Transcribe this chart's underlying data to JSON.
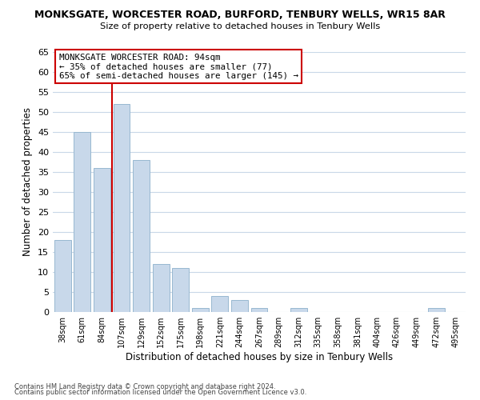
{
  "title": "MONKSGATE, WORCESTER ROAD, BURFORD, TENBURY WELLS, WR15 8AR",
  "subtitle": "Size of property relative to detached houses in Tenbury Wells",
  "xlabel": "Distribution of detached houses by size in Tenbury Wells",
  "ylabel": "Number of detached properties",
  "footnote1": "Contains HM Land Registry data © Crown copyright and database right 2024.",
  "footnote2": "Contains public sector information licensed under the Open Government Licence v3.0.",
  "bar_labels": [
    "38sqm",
    "61sqm",
    "84sqm",
    "107sqm",
    "129sqm",
    "152sqm",
    "175sqm",
    "198sqm",
    "221sqm",
    "244sqm",
    "267sqm",
    "289sqm",
    "312sqm",
    "335sqm",
    "358sqm",
    "381sqm",
    "404sqm",
    "426sqm",
    "449sqm",
    "472sqm",
    "495sqm"
  ],
  "bar_values": [
    18,
    45,
    36,
    52,
    38,
    12,
    11,
    1,
    4,
    3,
    1,
    0,
    1,
    0,
    0,
    0,
    0,
    0,
    0,
    1,
    0
  ],
  "bar_color": "#c8d8ea",
  "bar_edgecolor": "#98b8d0",
  "ylim": [
    0,
    65
  ],
  "yticks": [
    0,
    5,
    10,
    15,
    20,
    25,
    30,
    35,
    40,
    45,
    50,
    55,
    60,
    65
  ],
  "vline_x": 2.5,
  "vline_color": "#cc0000",
  "annotation_title": "MONKSGATE WORCESTER ROAD: 94sqm",
  "annotation_line1": "← 35% of detached houses are smaller (77)",
  "annotation_line2": "65% of semi-detached houses are larger (145) →",
  "background_color": "#ffffff",
  "grid_color": "#c8d8e8"
}
